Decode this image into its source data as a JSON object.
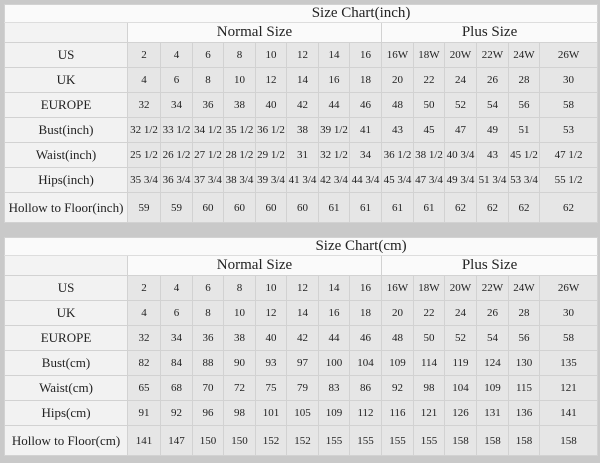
{
  "charts": [
    {
      "id": "inch",
      "title": "Size Chart(inch)",
      "normal_label": "Normal Size",
      "plus_label": "Plus Size",
      "rows": [
        {
          "label": "US",
          "normal": [
            "2",
            "4",
            "6",
            "8",
            "10",
            "12",
            "14",
            "16"
          ],
          "plus": [
            "16W",
            "18W",
            "20W",
            "22W",
            "24W",
            "26W"
          ]
        },
        {
          "label": "UK",
          "normal": [
            "4",
            "6",
            "8",
            "10",
            "12",
            "14",
            "16",
            "18"
          ],
          "plus": [
            "20",
            "22",
            "24",
            "26",
            "28",
            "30"
          ]
        },
        {
          "label": "EUROPE",
          "normal": [
            "32",
            "34",
            "36",
            "38",
            "40",
            "42",
            "44",
            "46"
          ],
          "plus": [
            "48",
            "50",
            "52",
            "54",
            "56",
            "58"
          ]
        },
        {
          "label": "Bust(inch)",
          "normal": [
            "32 1/2",
            "33 1/2",
            "34 1/2",
            "35 1/2",
            "36 1/2",
            "38",
            "39 1/2",
            "41"
          ],
          "plus": [
            "43",
            "45",
            "47",
            "49",
            "51",
            "53"
          ]
        },
        {
          "label": "Waist(inch)",
          "normal": [
            "25 1/2",
            "26 1/2",
            "27 1/2",
            "28 1/2",
            "29 1/2",
            "31",
            "32 1/2",
            "34"
          ],
          "plus": [
            "36 1/2",
            "38 1/2",
            "40 3/4",
            "43",
            "45 1/2",
            "47 1/2"
          ]
        },
        {
          "label": "Hips(inch)",
          "normal": [
            "35 3/4",
            "36 3/4",
            "37 3/4",
            "38 3/4",
            "39 3/4",
            "41 3/4",
            "42 3/4",
            "44 3/4"
          ],
          "plus": [
            "45 3/4",
            "47 3/4",
            "49 3/4",
            "51 3/4",
            "53 3/4",
            "55 1/2"
          ]
        },
        {
          "label": "Hollow to Floor(inch)",
          "normal": [
            "59",
            "59",
            "60",
            "60",
            "60",
            "60",
            "61",
            "61"
          ],
          "plus": [
            "61",
            "61",
            "62",
            "62",
            "62",
            "62"
          ]
        }
      ]
    },
    {
      "id": "cm",
      "title": "Size Chart(cm)",
      "normal_label": "Normal Size",
      "plus_label": "Plus Size",
      "rows": [
        {
          "label": "US",
          "normal": [
            "2",
            "4",
            "6",
            "8",
            "10",
            "12",
            "14",
            "16"
          ],
          "plus": [
            "16W",
            "18W",
            "20W",
            "22W",
            "24W",
            "26W"
          ]
        },
        {
          "label": "UK",
          "normal": [
            "4",
            "6",
            "8",
            "10",
            "12",
            "14",
            "16",
            "18"
          ],
          "plus": [
            "20",
            "22",
            "24",
            "26",
            "28",
            "30"
          ]
        },
        {
          "label": "EUROPE",
          "normal": [
            "32",
            "34",
            "36",
            "38",
            "40",
            "42",
            "44",
            "46"
          ],
          "plus": [
            "48",
            "50",
            "52",
            "54",
            "56",
            "58"
          ]
        },
        {
          "label": "Bust(cm)",
          "normal": [
            "82",
            "84",
            "88",
            "90",
            "93",
            "97",
            "100",
            "104"
          ],
          "plus": [
            "109",
            "114",
            "119",
            "124",
            "130",
            "135"
          ]
        },
        {
          "label": "Waist(cm)",
          "normal": [
            "65",
            "68",
            "70",
            "72",
            "75",
            "79",
            "83",
            "86"
          ],
          "plus": [
            "92",
            "98",
            "104",
            "109",
            "115",
            "121"
          ]
        },
        {
          "label": "Hips(cm)",
          "normal": [
            "91",
            "92",
            "96",
            "98",
            "101",
            "105",
            "109",
            "112"
          ],
          "plus": [
            "116",
            "121",
            "126",
            "131",
            "136",
            "141"
          ]
        },
        {
          "label": "Hollow to Floor(cm)",
          "normal": [
            "141",
            "147",
            "150",
            "150",
            "152",
            "152",
            "155",
            "155"
          ],
          "plus": [
            "155",
            "155",
            "158",
            "158",
            "158",
            "158"
          ]
        }
      ]
    }
  ]
}
